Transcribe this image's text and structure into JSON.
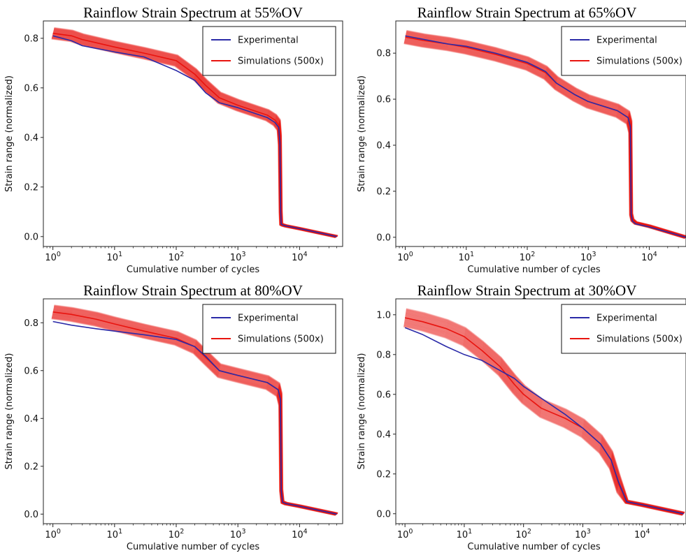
{
  "colors": {
    "experimental": "#2a2aa8",
    "simulation": "#e8140f",
    "axis": "#222222"
  },
  "chart_data": [
    {
      "type": "line",
      "title": "Rainflow Strain Spectrum at 55%OV",
      "xlabel": "Cumulative number of cycles",
      "ylabel": "Strain range (normalized)",
      "xscale": "log",
      "xlim": [
        0.7,
        50000
      ],
      "ylim": [
        -0.04,
        0.87
      ],
      "xticks": [
        1,
        10,
        100,
        1000,
        10000
      ],
      "xtick_labels": [
        {
          "base": "10",
          "exp": "0"
        },
        {
          "base": "10",
          "exp": "1"
        },
        {
          "base": "10",
          "exp": "2"
        },
        {
          "base": "10",
          "exp": "3"
        },
        {
          "base": "10",
          "exp": "4"
        }
      ],
      "yticks": [
        0.0,
        0.2,
        0.4,
        0.6,
        0.8
      ],
      "ytick_labels": [
        "0.0",
        "0.2",
        "0.4",
        "0.6",
        "0.8"
      ],
      "legend": {
        "position": "top-right",
        "entries": [
          "Experimental",
          "Simulations (500x)"
        ]
      },
      "series": [
        {
          "name": "Experimental",
          "x": [
            1,
            2,
            3,
            10,
            30,
            100,
            200,
            300,
            500,
            1000,
            3000,
            4000,
            4600,
            4800,
            4950,
            5050,
            5300,
            6000,
            10000,
            40000
          ],
          "y": [
            0.81,
            0.79,
            0.77,
            0.745,
            0.725,
            0.67,
            0.63,
            0.58,
            0.54,
            0.52,
            0.48,
            0.46,
            0.44,
            0.38,
            0.1,
            0.05,
            0.047,
            0.043,
            0.032,
            0.0
          ]
        },
        {
          "name": "Simulations (500x)",
          "x": [
            1,
            2,
            3,
            10,
            30,
            100,
            200,
            300,
            500,
            1000,
            3000,
            4000,
            4600,
            4800,
            4950,
            5050,
            5300,
            6000,
            10000,
            40000
          ],
          "y": [
            0.82,
            0.81,
            0.795,
            0.765,
            0.74,
            0.71,
            0.655,
            0.61,
            0.56,
            0.53,
            0.49,
            0.47,
            0.45,
            0.39,
            0.1,
            0.05,
            0.047,
            0.043,
            0.032,
            0.0
          ],
          "band": 0.022
        }
      ]
    },
    {
      "type": "line",
      "title": "Rainflow Strain Spectrum at 65%OV",
      "xlabel": "Cumulative number of cycles",
      "ylabel": "Strain range (normalized)",
      "xscale": "log",
      "xlim": [
        0.7,
        40000
      ],
      "ylim": [
        -0.04,
        0.94
      ],
      "xticks": [
        1,
        10,
        100,
        1000,
        10000
      ],
      "xtick_labels": [
        {
          "base": "10",
          "exp": "0"
        },
        {
          "base": "10",
          "exp": "1"
        },
        {
          "base": "10",
          "exp": "2"
        },
        {
          "base": "10",
          "exp": "3"
        },
        {
          "base": "10",
          "exp": "4"
        }
      ],
      "yticks": [
        0.0,
        0.2,
        0.4,
        0.6,
        0.8
      ],
      "ytick_labels": [
        "0.0",
        "0.2",
        "0.4",
        "0.6",
        "0.8"
      ],
      "legend": {
        "position": "top-right",
        "entries": [
          "Experimental",
          "Simulations (500x)"
        ]
      },
      "series": [
        {
          "name": "Experimental",
          "x": [
            1,
            2,
            5,
            10,
            30,
            100,
            200,
            300,
            600,
            1000,
            3000,
            4500,
            4900,
            5050,
            5300,
            6000,
            10000,
            40000
          ],
          "y": [
            0.875,
            0.86,
            0.84,
            0.83,
            0.8,
            0.76,
            0.72,
            0.67,
            0.62,
            0.59,
            0.55,
            0.52,
            0.48,
            0.1,
            0.07,
            0.058,
            0.045,
            0.0
          ]
        },
        {
          "name": "Simulations (500x)",
          "x": [
            1,
            2,
            5,
            10,
            30,
            100,
            200,
            300,
            600,
            1000,
            3000,
            4500,
            4900,
            5050,
            5300,
            6000,
            10000,
            40000
          ],
          "y": [
            0.87,
            0.855,
            0.84,
            0.825,
            0.795,
            0.755,
            0.715,
            0.67,
            0.62,
            0.59,
            0.55,
            0.52,
            0.48,
            0.1,
            0.075,
            0.062,
            0.048,
            0.0
          ],
          "band": 0.028
        }
      ]
    },
    {
      "type": "line",
      "title": "Rainflow Strain Spectrum at 80%OV",
      "xlabel": "Cumulative number of cycles",
      "ylabel": "Strain range (normalized)",
      "xscale": "log",
      "xlim": [
        0.7,
        50000
      ],
      "ylim": [
        -0.04,
        0.9
      ],
      "xticks": [
        1,
        10,
        100,
        1000,
        10000
      ],
      "xtick_labels": [
        {
          "base": "10",
          "exp": "0"
        },
        {
          "base": "10",
          "exp": "1"
        },
        {
          "base": "10",
          "exp": "2"
        },
        {
          "base": "10",
          "exp": "3"
        },
        {
          "base": "10",
          "exp": "4"
        }
      ],
      "yticks": [
        0.0,
        0.2,
        0.4,
        0.6,
        0.8
      ],
      "ytick_labels": [
        "0.0",
        "0.2",
        "0.4",
        "0.6",
        "0.8"
      ],
      "legend": {
        "position": "top-right",
        "entries": [
          "Experimental",
          "Simulations (500x)"
        ]
      },
      "series": [
        {
          "name": "Experimental",
          "x": [
            1,
            2,
            5,
            10,
            30,
            100,
            200,
            300,
            500,
            1000,
            3000,
            4500,
            4900,
            5050,
            5300,
            6000,
            10000,
            40000
          ],
          "y": [
            0.805,
            0.79,
            0.775,
            0.765,
            0.75,
            0.73,
            0.7,
            0.66,
            0.6,
            0.58,
            0.55,
            0.52,
            0.48,
            0.1,
            0.05,
            0.044,
            0.033,
            0.0
          ]
        },
        {
          "name": "Simulations (500x)",
          "x": [
            1,
            2,
            5,
            10,
            30,
            100,
            200,
            300,
            500,
            1000,
            3000,
            4500,
            4900,
            5050,
            5300,
            6000,
            10000,
            40000
          ],
          "y": [
            0.845,
            0.835,
            0.815,
            0.795,
            0.765,
            0.735,
            0.7,
            0.655,
            0.6,
            0.58,
            0.55,
            0.52,
            0.48,
            0.1,
            0.05,
            0.044,
            0.033,
            0.0
          ],
          "band": 0.028
        }
      ]
    },
    {
      "type": "line",
      "title": "Rainflow Strain Spectrum at 30%OV",
      "xlabel": "Cumulative number of cycles",
      "ylabel": "Strain range (normalized)",
      "xscale": "log",
      "xlim": [
        0.7,
        55000
      ],
      "ylim": [
        -0.05,
        1.08
      ],
      "xticks": [
        1,
        10,
        100,
        1000,
        10000
      ],
      "xtick_labels": [
        {
          "base": "10",
          "exp": "0"
        },
        {
          "base": "10",
          "exp": "1"
        },
        {
          "base": "10",
          "exp": "2"
        },
        {
          "base": "10",
          "exp": "3"
        },
        {
          "base": "10",
          "exp": "4"
        }
      ],
      "yticks": [
        0.0,
        0.2,
        0.4,
        0.6,
        0.8,
        1.0
      ],
      "ytick_labels": [
        "0.0",
        "0.2",
        "0.4",
        "0.6",
        "0.8",
        "1.0"
      ],
      "legend": {
        "position": "top-right",
        "entries": [
          "Experimental",
          "Simulations (500x)"
        ]
      },
      "series": [
        {
          "name": "Experimental",
          "x": [
            1,
            2,
            5,
            10,
            20,
            40,
            70,
            100,
            200,
            500,
            1000,
            2000,
            3000,
            4000,
            5500,
            10000,
            50000
          ],
          "y": [
            0.935,
            0.9,
            0.84,
            0.8,
            0.77,
            0.72,
            0.68,
            0.64,
            0.58,
            0.5,
            0.43,
            0.35,
            0.27,
            0.16,
            0.06,
            0.045,
            0.0
          ]
        },
        {
          "name": "Simulations (500x)",
          "x": [
            1,
            2,
            5,
            10,
            20,
            40,
            70,
            100,
            200,
            500,
            1000,
            2000,
            3000,
            4000,
            5500,
            10000,
            50000
          ],
          "y": [
            0.985,
            0.965,
            0.93,
            0.89,
            0.82,
            0.74,
            0.65,
            0.6,
            0.53,
            0.48,
            0.43,
            0.35,
            0.27,
            0.15,
            0.06,
            0.045,
            0.0
          ],
          "band": 0.045
        }
      ]
    }
  ]
}
